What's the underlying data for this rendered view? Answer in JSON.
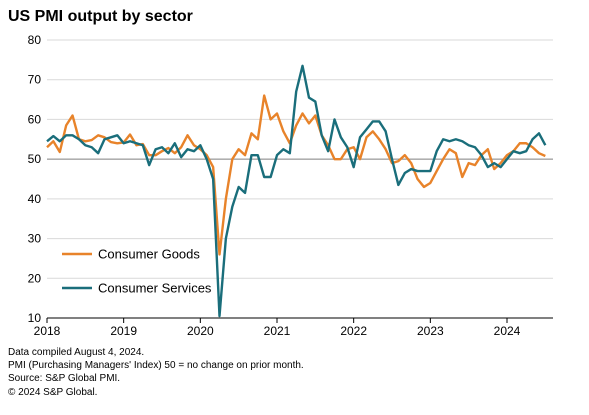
{
  "chart_data": {
    "type": "line",
    "title": "US PMI output by sector",
    "xlabel": "",
    "ylabel": "",
    "ylim": [
      10,
      80
    ],
    "yticks": [
      10,
      20,
      30,
      40,
      50,
      60,
      70,
      80
    ],
    "xticks": [
      {
        "label": "2018",
        "x": 2018.0
      },
      {
        "label": "2019",
        "x": 2019.0
      },
      {
        "label": "2020",
        "x": 2020.0
      },
      {
        "label": "2021",
        "x": 2021.0
      },
      {
        "label": "2022",
        "x": 2022.0
      },
      {
        "label": "2023",
        "x": 2023.0
      },
      {
        "label": "2024",
        "x": 2024.0
      }
    ],
    "xlim": [
      2018.0,
      2024.6
    ],
    "reference_line": 50,
    "grid": "horizontal",
    "legend_position": "center-left",
    "series": [
      {
        "name": "Consumer Goods",
        "color": "#E8832A",
        "x": [
          2018.0,
          2018.083,
          2018.167,
          2018.25,
          2018.333,
          2018.417,
          2018.5,
          2018.583,
          2018.667,
          2018.75,
          2018.833,
          2018.917,
          2019.0,
          2019.083,
          2019.167,
          2019.25,
          2019.333,
          2019.417,
          2019.5,
          2019.583,
          2019.667,
          2019.75,
          2019.833,
          2019.917,
          2020.0,
          2020.083,
          2020.167,
          2020.25,
          2020.333,
          2020.417,
          2020.5,
          2020.583,
          2020.667,
          2020.75,
          2020.833,
          2020.917,
          2021.0,
          2021.083,
          2021.167,
          2021.25,
          2021.333,
          2021.417,
          2021.5,
          2021.583,
          2021.667,
          2021.75,
          2021.833,
          2021.917,
          2022.0,
          2022.083,
          2022.167,
          2022.25,
          2022.333,
          2022.417,
          2022.5,
          2022.583,
          2022.667,
          2022.75,
          2022.833,
          2022.917,
          2023.0,
          2023.083,
          2023.167,
          2023.25,
          2023.333,
          2023.417,
          2023.5,
          2023.583,
          2023.667,
          2023.75,
          2023.833,
          2023.917,
          2024.0,
          2024.083,
          2024.167,
          2024.25,
          2024.333,
          2024.417,
          2024.5
        ],
        "values": [
          53.0,
          54.5,
          51.8,
          58.5,
          61.0,
          55.0,
          54.5,
          54.8,
          56.0,
          55.5,
          54.3,
          54.0,
          54.2,
          56.2,
          53.5,
          53.8,
          51.0,
          51.0,
          52.0,
          52.8,
          51.5,
          53.0,
          56.0,
          53.5,
          52.5,
          51.0,
          48.0,
          26.0,
          40.0,
          50.0,
          52.5,
          51.0,
          56.5,
          55.0,
          66.0,
          60.0,
          61.5,
          57.0,
          54.0,
          58.5,
          61.5,
          59.0,
          61.0,
          56.0,
          53.5,
          50.0,
          50.0,
          52.5,
          53.0,
          50.0,
          55.5,
          57.0,
          55.0,
          52.5,
          49.0,
          49.5,
          51.0,
          49.0,
          45.0,
          43.0,
          44.0,
          47.0,
          50.0,
          52.5,
          51.5,
          45.5,
          49.0,
          48.5,
          51.0,
          52.5,
          47.5,
          49.0,
          51.0,
          52.0,
          54.0,
          54.0,
          53.0,
          51.5,
          50.8
        ]
      },
      {
        "name": "Consumer Services",
        "color": "#1A6E7B",
        "x": [
          2018.0,
          2018.083,
          2018.167,
          2018.25,
          2018.333,
          2018.417,
          2018.5,
          2018.583,
          2018.667,
          2018.75,
          2018.833,
          2018.917,
          2019.0,
          2019.083,
          2019.167,
          2019.25,
          2019.333,
          2019.417,
          2019.5,
          2019.583,
          2019.667,
          2019.75,
          2019.833,
          2019.917,
          2020.0,
          2020.083,
          2020.167,
          2020.25,
          2020.333,
          2020.417,
          2020.5,
          2020.583,
          2020.667,
          2020.75,
          2020.833,
          2020.917,
          2021.0,
          2021.083,
          2021.167,
          2021.25,
          2021.333,
          2021.417,
          2021.5,
          2021.583,
          2021.667,
          2021.75,
          2021.833,
          2021.917,
          2022.0,
          2022.083,
          2022.167,
          2022.25,
          2022.333,
          2022.417,
          2022.5,
          2022.583,
          2022.667,
          2022.75,
          2022.833,
          2022.917,
          2023.0,
          2023.083,
          2023.167,
          2023.25,
          2023.333,
          2023.417,
          2023.5,
          2023.583,
          2023.667,
          2023.75,
          2023.833,
          2023.917,
          2024.0,
          2024.083,
          2024.167,
          2024.25,
          2024.333,
          2024.417,
          2024.5
        ],
        "values": [
          54.5,
          55.8,
          54.5,
          56.0,
          56.0,
          55.0,
          53.5,
          53.0,
          51.5,
          55.0,
          55.5,
          56.0,
          54.0,
          54.5,
          54.0,
          53.5,
          48.5,
          52.5,
          53.0,
          51.5,
          54.0,
          50.5,
          52.5,
          52.0,
          53.5,
          50.0,
          45.0,
          10.5,
          30.0,
          38.0,
          43.0,
          41.5,
          51.0,
          51.0,
          45.5,
          45.5,
          51.0,
          52.5,
          51.5,
          67.0,
          73.5,
          65.5,
          64.5,
          56.0,
          52.0,
          60.0,
          55.5,
          53.0,
          48.0,
          55.5,
          57.5,
          59.5,
          59.5,
          57.0,
          50.0,
          43.5,
          46.5,
          47.5,
          47.0,
          47.0,
          47.0,
          52.0,
          55.0,
          54.5,
          55.0,
          54.5,
          53.5,
          53.0,
          51.0,
          48.0,
          49.0,
          48.0,
          50.0,
          52.0,
          51.5,
          52.0,
          55.0,
          56.5,
          53.5
        ]
      }
    ]
  },
  "footnotes": [
    "Data compiled August 4, 2024.",
    "PMI (Purchasing Managers' Index) 50 =  no change on prior month.",
    "Source: S&P Global PMI.",
    "© 2024 S&P Global."
  ]
}
